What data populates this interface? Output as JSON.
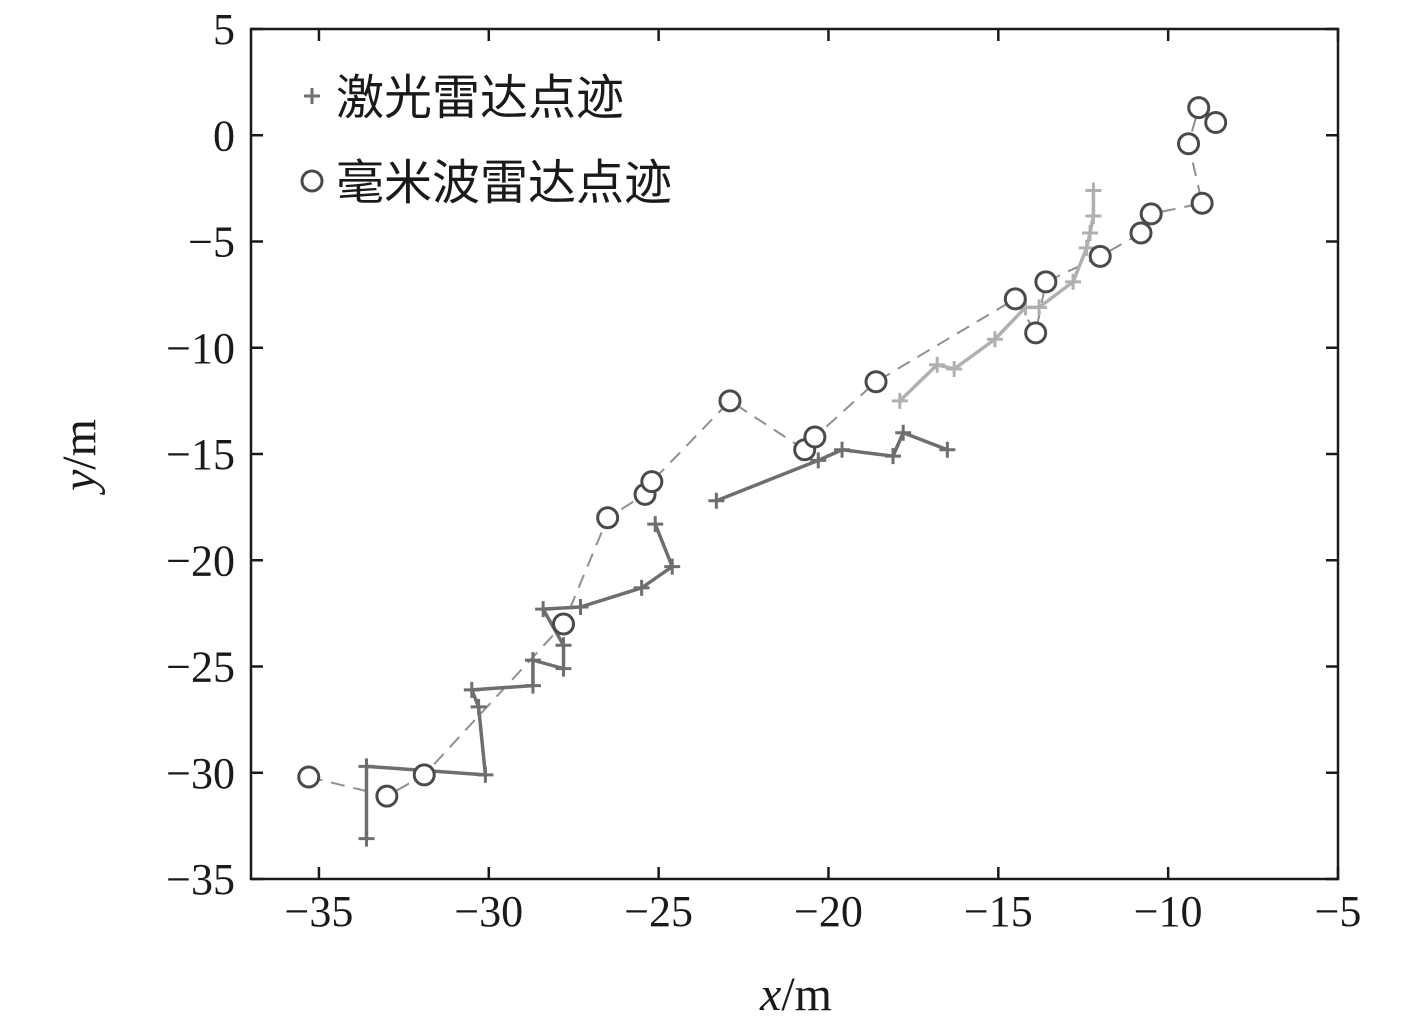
{
  "chart_data": {
    "type": "scatter",
    "xlim": [
      -37,
      -5
    ],
    "ylim": [
      -35,
      5
    ],
    "x_ticks": [
      -35,
      -30,
      -25,
      -20,
      -15,
      -10,
      -5
    ],
    "y_ticks": [
      5,
      0,
      -5,
      -10,
      -15,
      -20,
      -25,
      -30,
      -35
    ],
    "x_tick_labels": [
      "−35",
      "−30",
      "−25",
      "−20",
      "−15",
      "−10",
      "−5"
    ],
    "y_tick_labels": [
      "5",
      "0",
      "−5",
      "−10",
      "−15",
      "−20",
      "−25",
      "−30",
      "−35"
    ],
    "xlabel_var": "x",
    "xlabel_unit": "/m",
    "ylabel_var": "y",
    "ylabel_unit": "/m",
    "grid": false,
    "legend_position": "top-left",
    "series": [
      {
        "name": "激光雷达点迹",
        "marker": "plus",
        "color": "#6e6e6e",
        "segments": [
          {
            "color": "#6e6e6e",
            "points": [
              [
                -33.6,
                -33.1
              ],
              [
                -33.6,
                -29.7
              ],
              [
                -30.1,
                -30.1
              ],
              [
                -30.3,
                -26.9
              ],
              [
                -30.5,
                -26.1
              ],
              [
                -28.7,
                -25.9
              ],
              [
                -28.7,
                -24.7
              ],
              [
                -27.8,
                -25.1
              ],
              [
                -27.8,
                -24.0
              ],
              [
                -28.4,
                -22.3
              ],
              [
                -27.3,
                -22.2
              ],
              [
                -25.5,
                -21.3
              ],
              [
                -24.6,
                -20.3
              ],
              [
                -25.1,
                -18.3
              ]
            ]
          },
          {
            "color": "#6e6e6e",
            "points": [
              [
                -23.3,
                -17.2
              ],
              [
                -20.3,
                -15.3
              ],
              [
                -19.6,
                -14.8
              ],
              [
                -18.1,
                -15.1
              ],
              [
                -17.8,
                -14.0
              ],
              [
                -16.5,
                -14.8
              ]
            ]
          },
          {
            "color": "#b0b0b0",
            "points": [
              [
                -17.9,
                -12.5
              ],
              [
                -16.8,
                -10.8
              ],
              [
                -16.3,
                -11.0
              ],
              [
                -15.1,
                -9.6
              ],
              [
                -14.2,
                -8.1
              ],
              [
                -13.8,
                -8.1
              ],
              [
                -12.8,
                -6.9
              ],
              [
                -12.4,
                -5.3
              ],
              [
                -12.3,
                -4.6
              ],
              [
                -12.2,
                -3.8
              ],
              [
                -12.2,
                -2.6
              ]
            ]
          }
        ]
      },
      {
        "name": "毫米波雷达点迹",
        "marker": "circle",
        "color": "#4a4a4a",
        "segments": [
          {
            "color": "#909090",
            "points": [
              [
                -35.3,
                -30.2
              ],
              [
                -33.0,
                -31.1
              ],
              [
                -31.9,
                -30.1
              ],
              [
                -27.8,
                -23.0
              ],
              [
                -26.5,
                -18.0
              ],
              [
                -25.4,
                -16.9
              ],
              [
                -25.2,
                -16.3
              ],
              [
                -22.9,
                -12.5
              ],
              [
                -20.7,
                -14.8
              ],
              [
                -20.4,
                -14.2
              ],
              [
                -18.6,
                -11.6
              ],
              [
                -14.5,
                -7.7
              ],
              [
                -13.9,
                -9.3
              ],
              [
                -13.6,
                -6.9
              ],
              [
                -12.0,
                -5.7
              ],
              [
                -10.8,
                -4.6
              ],
              [
                -10.5,
                -3.7
              ],
              [
                -9.0,
                -3.2
              ],
              [
                -9.4,
                -0.4
              ],
              [
                -9.1,
                1.3
              ],
              [
                -8.6,
                0.6
              ]
            ]
          }
        ]
      }
    ]
  }
}
